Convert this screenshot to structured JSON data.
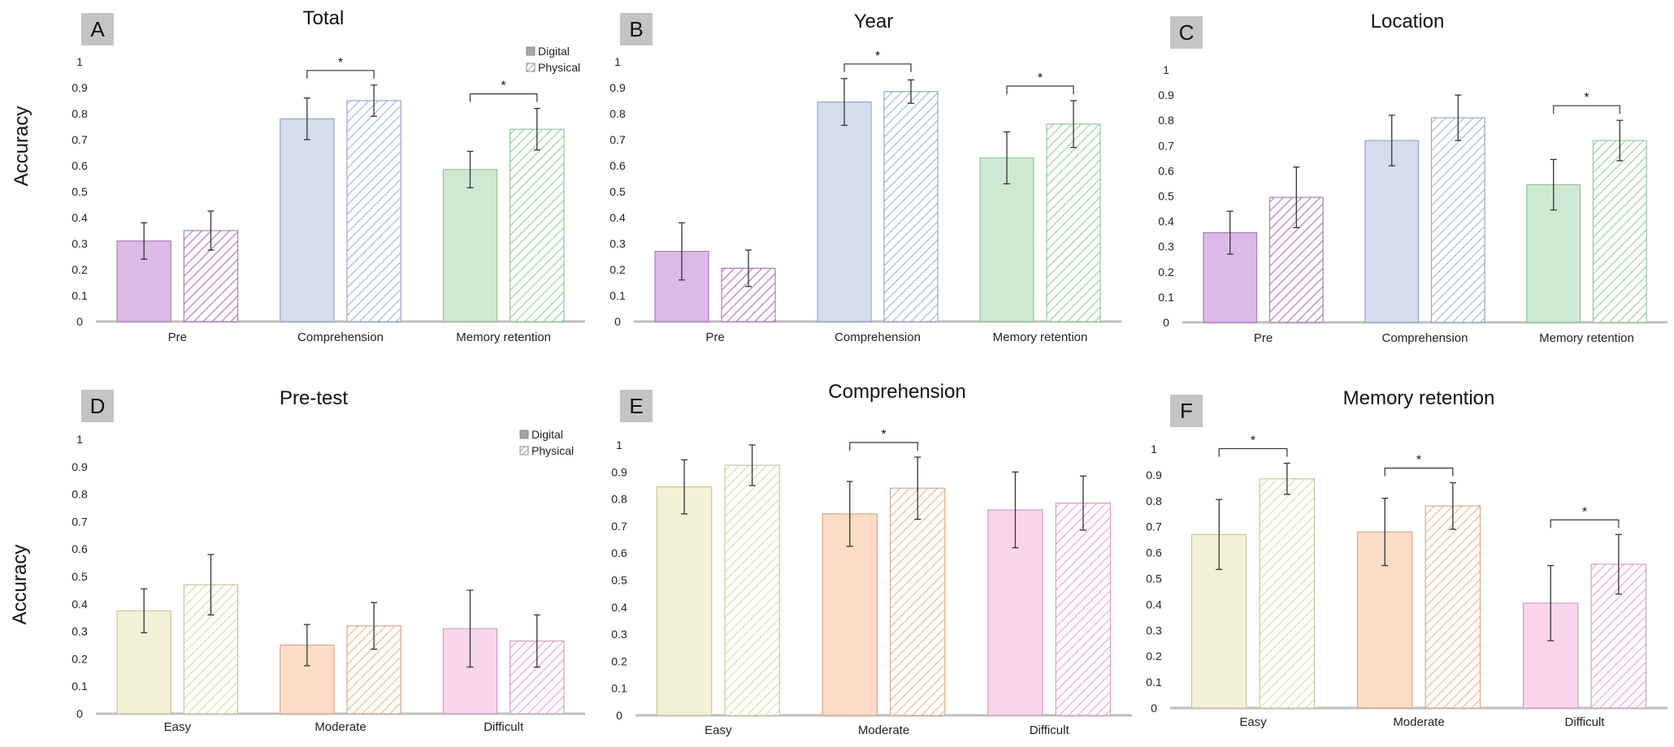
{
  "y_axis_label": "Accuracy",
  "legend": {
    "digital": "Digital",
    "physical": "Physical"
  },
  "colors": {
    "purple": "#ddb9e8",
    "purple_edge": "#a87fb8",
    "blue": "#d5dcec",
    "blue_edge": "#98a6c4",
    "green": "#cfe8d2",
    "green_edge": "#95c49c",
    "yellow": "#f2f1d6",
    "yellow_edge": "#c9c69b",
    "orange": "#fcdcc7",
    "orange_edge": "#d4a98e",
    "pink": "#f8d5ec",
    "pink_edge": "#d4a0c2",
    "axis": "#bfbfbf",
    "errorbar": "#333333"
  },
  "chart_data": [
    {
      "type": "bar",
      "panel": "A",
      "title": "Total",
      "categories": [
        "Pre",
        "Comprehension",
        "Memory retention"
      ],
      "category_colors": [
        "purple",
        "blue",
        "green"
      ],
      "series": [
        {
          "name": "Digital",
          "values": [
            0.31,
            0.78,
            0.585
          ],
          "errors": [
            0.07,
            0.08,
            0.07
          ]
        },
        {
          "name": "Physical",
          "values": [
            0.35,
            0.85,
            0.74
          ],
          "errors": [
            0.075,
            0.06,
            0.08
          ]
        }
      ],
      "significance": [
        false,
        true,
        true
      ],
      "ylim": [
        0,
        1
      ],
      "yticks": [
        "0",
        "0.1",
        "0.2",
        "0.3",
        "0.4",
        "0.5",
        "0.6",
        "0.7",
        "0.8",
        "0.9",
        "1"
      ],
      "legend": true
    },
    {
      "type": "bar",
      "panel": "B",
      "title": "Year",
      "categories": [
        "Pre",
        "Comprehension",
        "Memory retention"
      ],
      "category_colors": [
        "purple",
        "blue",
        "green"
      ],
      "series": [
        {
          "name": "Digital",
          "values": [
            0.27,
            0.845,
            0.63
          ],
          "errors": [
            0.11,
            0.09,
            0.1
          ]
        },
        {
          "name": "Physical",
          "values": [
            0.205,
            0.885,
            0.76
          ],
          "errors": [
            0.07,
            0.045,
            0.09
          ]
        }
      ],
      "significance": [
        false,
        true,
        true
      ],
      "ylim": [
        0,
        1
      ],
      "yticks": [
        "0",
        "0.1",
        "0.2",
        "0.3",
        "0.4",
        "0.5",
        "0.6",
        "0.7",
        "0.8",
        "0.9",
        "1"
      ],
      "legend": false
    },
    {
      "type": "bar",
      "panel": "C",
      "title": "Location",
      "categories": [
        "Pre",
        "Comprehension",
        "Memory retention"
      ],
      "category_colors": [
        "purple",
        "blue",
        "green"
      ],
      "series": [
        {
          "name": "Digital",
          "values": [
            0.355,
            0.72,
            0.545
          ],
          "errors": [
            0.085,
            0.1,
            0.1
          ]
        },
        {
          "name": "Physical",
          "values": [
            0.495,
            0.81,
            0.72
          ],
          "errors": [
            0.12,
            0.09,
            0.08
          ]
        }
      ],
      "significance": [
        false,
        false,
        true
      ],
      "ylim": [
        0,
        1
      ],
      "yticks": [
        "0",
        "0.1",
        "0.2",
        "0.3",
        "0.4",
        "0.5",
        "0.6",
        "0.7",
        "0.8",
        "0.9",
        "1"
      ],
      "legend": false
    },
    {
      "type": "bar",
      "panel": "D",
      "title": "Pre-test",
      "categories": [
        "Easy",
        "Moderate",
        "Difficult"
      ],
      "category_colors": [
        "yellow",
        "orange",
        "pink"
      ],
      "series": [
        {
          "name": "Digital",
          "values": [
            0.375,
            0.25,
            0.31
          ],
          "errors": [
            0.08,
            0.075,
            0.14
          ]
        },
        {
          "name": "Physical",
          "values": [
            0.47,
            0.32,
            0.265
          ],
          "errors": [
            0.11,
            0.085,
            0.095
          ]
        }
      ],
      "significance": [
        false,
        false,
        false
      ],
      "ylim": [
        0,
        1
      ],
      "yticks": [
        "0",
        "0.1",
        "0.2",
        "0.3",
        "0.4",
        "0.5",
        "0.6",
        "0.7",
        "0.8",
        "0.9",
        "1"
      ],
      "legend": true
    },
    {
      "type": "bar",
      "panel": "E",
      "title": "Comprehension",
      "categories": [
        "Easy",
        "Moderate",
        "Difficult"
      ],
      "category_colors": [
        "yellow",
        "orange",
        "pink"
      ],
      "series": [
        {
          "name": "Digital",
          "values": [
            0.845,
            0.745,
            0.76
          ],
          "errors": [
            0.1,
            0.12,
            0.14
          ]
        },
        {
          "name": "Physical",
          "values": [
            0.925,
            0.84,
            0.785
          ],
          "errors": [
            0.075,
            0.115,
            0.1
          ]
        }
      ],
      "significance": [
        false,
        true,
        false
      ],
      "ylim": [
        0,
        1
      ],
      "yticks": [
        "0",
        "0.1",
        "0.2",
        "0.3",
        "0.4",
        "0.5",
        "0.6",
        "0.7",
        "0.8",
        "0.9",
        "1"
      ],
      "legend": false
    },
    {
      "type": "bar",
      "panel": "F",
      "title": "Memory retention",
      "categories": [
        "Easy",
        "Moderate",
        "Difficult"
      ],
      "category_colors": [
        "yellow",
        "orange",
        "pink"
      ],
      "series": [
        {
          "name": "Digital",
          "values": [
            0.67,
            0.68,
            0.405
          ],
          "errors": [
            0.135,
            0.13,
            0.145
          ]
        },
        {
          "name": "Physical",
          "values": [
            0.885,
            0.78,
            0.555
          ],
          "errors": [
            0.06,
            0.09,
            0.115
          ]
        }
      ],
      "significance": [
        true,
        true,
        true
      ],
      "ylim": [
        0,
        1
      ],
      "yticks": [
        "0",
        "0.1",
        "0.2",
        "0.3",
        "0.4",
        "0.5",
        "0.6",
        "0.7",
        "0.8",
        "0.9",
        "1"
      ],
      "legend": false
    }
  ]
}
